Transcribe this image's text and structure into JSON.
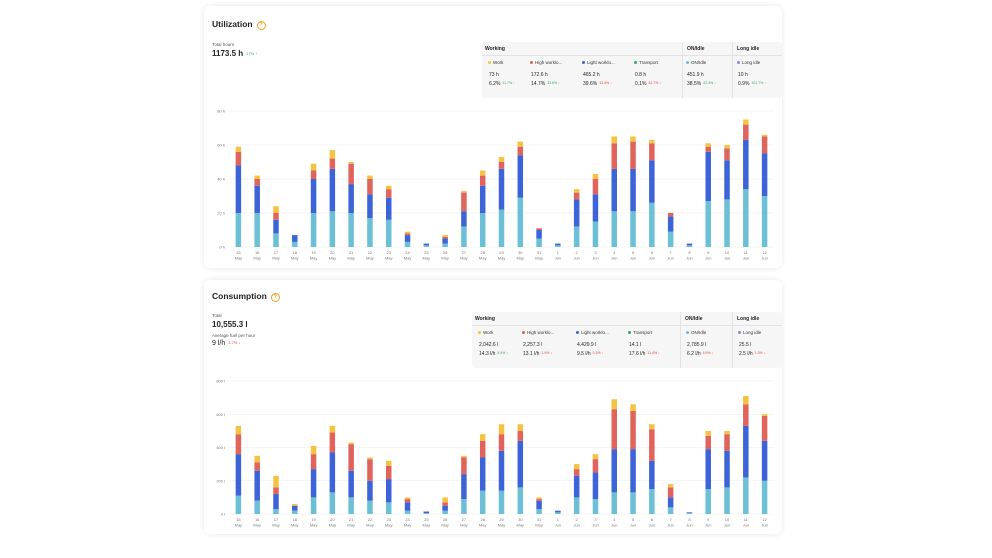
{
  "colors": {
    "work": "#f5c342",
    "high_workload": "#e0645c",
    "light_workload": "#3d63d9",
    "transport": "#2fae63",
    "on_idle": "#6cc0d6",
    "long_idle": "#8c86e8",
    "grid": "#ececec",
    "axis_text": "#777777"
  },
  "utilization": {
    "title": "Utilization",
    "total_label": "Total hours",
    "total_value": "1173.5 h",
    "total_delta": "17% ↑",
    "groups": {
      "working": "Working",
      "on_idle": "ON/Idle",
      "long_idle": "Long idle"
    },
    "legend": [
      {
        "key": "work",
        "label": "Work",
        "value": "73 h",
        "pct": "6.2%",
        "delta": "11.7% ↑",
        "dir": "up"
      },
      {
        "key": "high_workload",
        "label": "High worklo...",
        "value": "172.6 h",
        "pct": "14.7%",
        "delta": "33.6% ↑",
        "dir": "up"
      },
      {
        "key": "light_workload",
        "label": "Light worklo...",
        "value": "465.2 h",
        "pct": "39.6%",
        "delta": "13.4% ↓",
        "dir": "down"
      },
      {
        "key": "transport",
        "label": "Transport",
        "value": "0.8 h",
        "pct": "0.1%",
        "delta": "32.7% ↓",
        "dir": "down"
      },
      {
        "key": "on_idle",
        "label": "ON/Idle",
        "value": "451.9 h",
        "pct": "38.5%",
        "delta": "22.3% ↑",
        "dir": "up"
      },
      {
        "key": "long_idle",
        "label": "Long idle",
        "value": "10 h",
        "pct": "0.9%",
        "delta": "101.7% ↑",
        "dir": "up"
      }
    ]
  },
  "consumption": {
    "title": "Consumption",
    "total_label": "Total",
    "total_value": "10,555.3 l",
    "avg_label": "Average fuel per hour",
    "avg_value": "9 l/h",
    "avg_delta": "3.7% ↓",
    "groups": {
      "working": "Working",
      "on_idle": "ON/Idle",
      "long_idle": "Long idle"
    },
    "legend": [
      {
        "key": "work",
        "label": "Work",
        "value": "2,042.6 l",
        "pct": "14.3 l/h",
        "delta": "5.4% ↑",
        "dir": "up"
      },
      {
        "key": "high_workload",
        "label": "High worklo...",
        "value": "2,257.3 l",
        "pct": "13.1 l/h",
        "delta": "1.9% ↓",
        "dir": "down"
      },
      {
        "key": "light_workload",
        "label": "Light worklo...",
        "value": "4,429.9 l",
        "pct": "9.5 l/h",
        "delta": "0.3% ↓",
        "dir": "down"
      },
      {
        "key": "transport",
        "label": "Transport",
        "value": "14.1 l",
        "pct": "17.6 l/h",
        "delta": "11.4% ↓",
        "dir": "down"
      },
      {
        "key": "on_idle",
        "label": "ON/Idle",
        "value": "2,785.9 l",
        "pct": "6.2 l/h",
        "delta": "4.9% ↓",
        "dir": "down"
      },
      {
        "key": "long_idle",
        "label": "Long idle",
        "value": "25.5 l",
        "pct": "2.5 l/h",
        "delta": "1.3% ↓",
        "dir": "down"
      }
    ]
  },
  "chart_data": [
    {
      "type": "bar",
      "stacked": true,
      "ylim": [
        0,
        80
      ],
      "yticks": [
        "0 h",
        "20 h",
        "40 h",
        "60 h",
        "80 h"
      ],
      "categories": [
        "15 May",
        "16 May",
        "17 May",
        "18 May",
        "19 May",
        "20 May",
        "21 May",
        "22 May",
        "23 May",
        "24 May",
        "25 May",
        "26 May",
        "27 May",
        "28 May",
        "29 May",
        "30 May",
        "31 May",
        "1 Jun",
        "2 Jun",
        "3 Jun",
        "4 Jun",
        "5 Jun",
        "6 Jun",
        "7 Jun",
        "8 Jun",
        "9 Jun",
        "10 Jun",
        "11 Jun",
        "12 Jun"
      ],
      "series": [
        {
          "key": "on_idle",
          "values": [
            20,
            20,
            8,
            3,
            20,
            21,
            20,
            17,
            16,
            3,
            1,
            2,
            12,
            20,
            22,
            29,
            5,
            1,
            12,
            15,
            21,
            21,
            26,
            9,
            1,
            27,
            28,
            34,
            30
          ]
        },
        {
          "key": "light_workload",
          "values": [
            28,
            16,
            8,
            4,
            20,
            25,
            17,
            14,
            13,
            4,
            1,
            3,
            9,
            16,
            24,
            25,
            5,
            1,
            16,
            16,
            25,
            25,
            25,
            9,
            1,
            29,
            23,
            29,
            25
          ]
        },
        {
          "key": "high_workload",
          "values": [
            8,
            4,
            4,
            0,
            5,
            6,
            12,
            9,
            5,
            1,
            0,
            1,
            11,
            6,
            4,
            5,
            1,
            0,
            4,
            9,
            15,
            16,
            10,
            2,
            0,
            3,
            7,
            9,
            10
          ]
        },
        {
          "key": "work",
          "values": [
            3,
            2,
            4,
            0,
            4,
            5,
            1,
            2,
            2,
            1,
            0,
            1,
            1,
            3,
            3,
            3,
            0,
            0,
            2,
            3,
            4,
            3,
            2,
            0,
            0,
            2,
            2,
            3,
            1
          ]
        }
      ]
    },
    {
      "type": "bar",
      "stacked": true,
      "ylim": [
        0,
        800
      ],
      "yticks": [
        "0 l",
        "200 l",
        "400 l",
        "600 l",
        "800 l"
      ],
      "categories": [
        "15 May",
        "16 May",
        "17 May",
        "18 May",
        "19 May",
        "20 May",
        "21 May",
        "22 May",
        "23 May",
        "24 May",
        "25 May",
        "26 May",
        "27 May",
        "28 May",
        "29 May",
        "30 May",
        "31 May",
        "1 Jun",
        "2 Jun",
        "3 Jun",
        "4 Jun",
        "5 Jun",
        "6 Jun",
        "7 Jun",
        "8 Jun",
        "9 Jun",
        "10 Jun",
        "11 Jun",
        "12 Jun"
      ],
      "series": [
        {
          "key": "on_idle",
          "values": [
            110,
            80,
            30,
            20,
            100,
            130,
            100,
            80,
            70,
            20,
            5,
            20,
            90,
            140,
            140,
            160,
            30,
            10,
            100,
            90,
            130,
            130,
            150,
            40,
            5,
            150,
            160,
            220,
            200
          ]
        },
        {
          "key": "light_workload",
          "values": [
            250,
            180,
            90,
            30,
            170,
            240,
            160,
            120,
            140,
            50,
            10,
            30,
            150,
            200,
            240,
            280,
            50,
            10,
            130,
            160,
            260,
            260,
            170,
            60,
            5,
            240,
            220,
            310,
            240
          ]
        },
        {
          "key": "high_workload",
          "values": [
            120,
            50,
            40,
            0,
            90,
            120,
            160,
            130,
            80,
            20,
            0,
            20,
            100,
            100,
            100,
            60,
            10,
            0,
            40,
            80,
            240,
            230,
            190,
            60,
            0,
            80,
            100,
            130,
            150
          ]
        },
        {
          "key": "work",
          "values": [
            50,
            40,
            70,
            10,
            50,
            40,
            10,
            10,
            30,
            10,
            0,
            30,
            10,
            40,
            60,
            40,
            10,
            0,
            30,
            30,
            60,
            40,
            30,
            20,
            0,
            30,
            20,
            50,
            10
          ]
        }
      ]
    }
  ]
}
